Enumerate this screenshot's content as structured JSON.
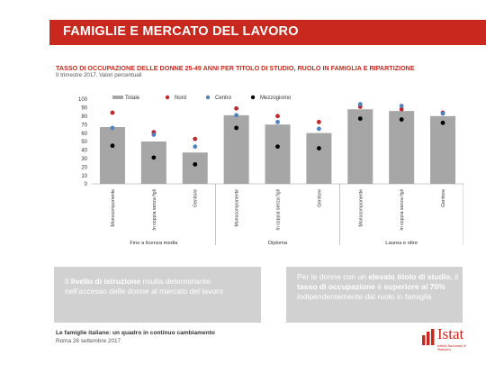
{
  "header": {
    "title": "FAMIGLIE E MERCATO DEL LAVORO"
  },
  "chart_title": "TASSO DI OCCUPAZIONE DELLE DONNE 25-49 ANNI PER TITOLO DI STUDIO, RUOLO IN FAMIGLIA E RIPARTIZIONE",
  "chart_subtitle": "II trimestre 2017. Valori percentuali",
  "colors": {
    "accent": "#c8281e",
    "bar": "#a6a6a6",
    "nord": "#c0272d",
    "centro": "#4f81bd",
    "mezzogiorno": "#000000",
    "box": "#d1d1d1"
  },
  "chart_data": {
    "type": "bar",
    "ylim": [
      0,
      100
    ],
    "yticks": [
      0,
      10,
      20,
      30,
      40,
      50,
      60,
      70,
      80,
      90,
      100
    ],
    "legend": {
      "position": "top",
      "entries": [
        "Totale",
        "Nord",
        "Centro",
        "Mezzogiorno"
      ]
    },
    "categories": [
      "Monocomponente",
      "In coppia senza figli",
      "Genitore",
      "Monocomponente",
      "In coppia senza figli",
      "Genitore",
      "Monocomponente",
      "In coppia senza figli",
      "Genitore"
    ],
    "groups": [
      {
        "label": "Fino a licenza media",
        "size": 3
      },
      {
        "label": "Diploma",
        "size": 3
      },
      {
        "label": "Laurea e oltre",
        "size": 3
      }
    ],
    "series": [
      {
        "name": "Totale",
        "kind": "bar",
        "values": [
          67,
          50,
          37,
          81,
          70,
          60,
          88,
          86,
          80
        ]
      },
      {
        "name": "Nord",
        "kind": "dot",
        "values": [
          84,
          61,
          53,
          89,
          80,
          73,
          91,
          88,
          84
        ]
      },
      {
        "name": "Centro",
        "kind": "dot",
        "values": [
          66,
          58,
          44,
          81,
          73,
          65,
          94,
          92,
          83
        ]
      },
      {
        "name": "Mezzogiorno",
        "kind": "dot",
        "values": [
          45,
          31,
          23,
          66,
          44,
          42,
          77,
          76,
          72
        ]
      }
    ]
  },
  "box_left": {
    "pre": "Il ",
    "bold": "livello di istruzione",
    "post": "  risulta determinante nell’accesso delle donne al mercato del lavoro"
  },
  "box_right": {
    "pre": "Per le donne con un ",
    "bold1": "elevato titolo di studio",
    "mid": ", il ",
    "bold2": "tasso di occupazione",
    "mid2": " è ",
    "bold3": "superiore al 70%",
    "post": " indipendentemente dal ruolo in famiglia"
  },
  "footer": {
    "title": "Le famiglie italiane: un quadro in continuo cambiamento",
    "date": "Roma 28 settembre 2017"
  },
  "logo": {
    "name": "Istat",
    "subtitle": "Istituto Nazionale di Statistica",
    "icon": "istat-logo-icon"
  }
}
